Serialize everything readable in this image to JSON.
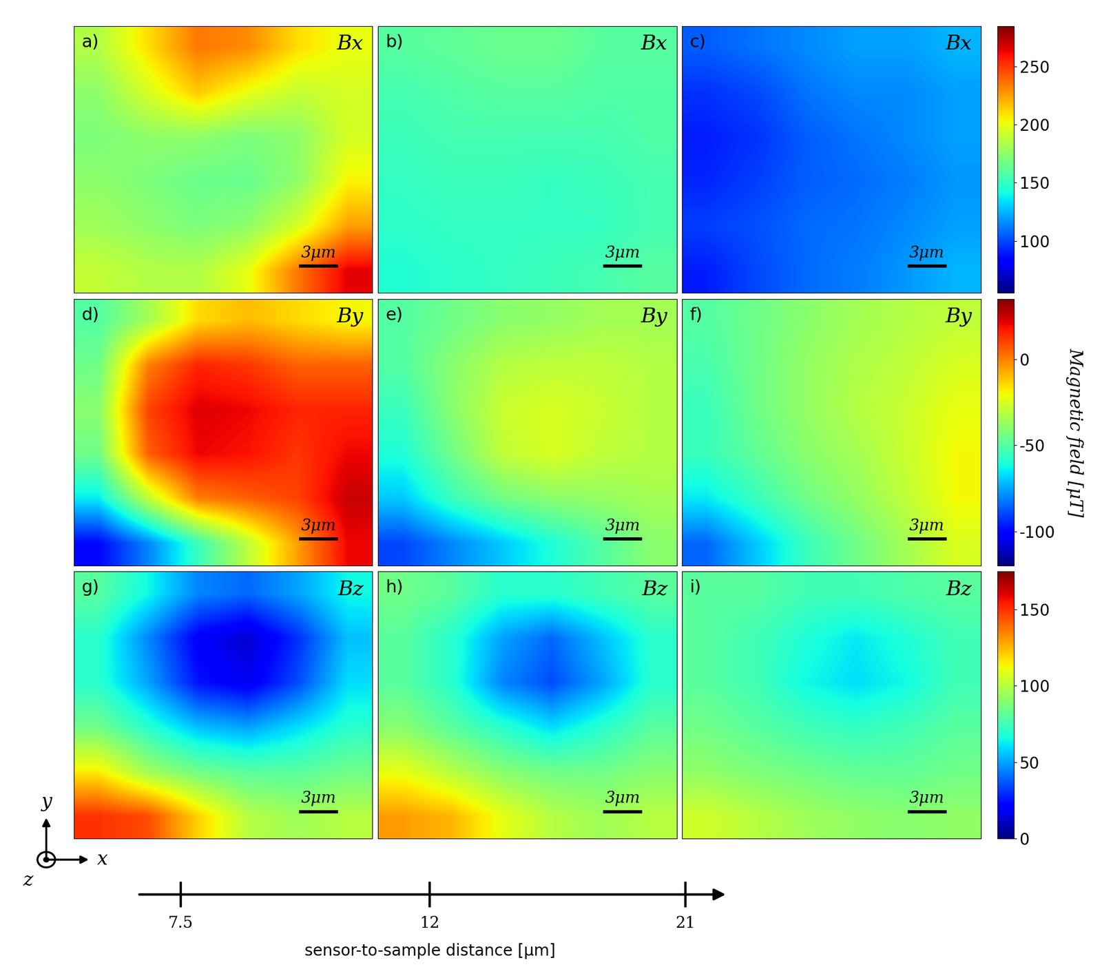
{
  "chart_data": [
    {
      "type": "heatmap",
      "label": "a)",
      "title": "Bx",
      "scale_bar": "3μm",
      "cells": [
        [
          185,
          210,
          235,
          230,
          210,
          200
        ],
        [
          175,
          195,
          215,
          200,
          190,
          195
        ],
        [
          170,
          175,
          175,
          170,
          175,
          195
        ],
        [
          175,
          170,
          165,
          165,
          175,
          205
        ],
        [
          180,
          175,
          170,
          175,
          195,
          225
        ],
        [
          190,
          185,
          185,
          200,
          235,
          265
        ]
      ]
    },
    {
      "type": "heatmap",
      "label": "b)",
      "title": "Bx",
      "scale_bar": "3μm",
      "cells": [
        [
          160,
          162,
          165,
          165,
          160,
          160
        ],
        [
          155,
          158,
          160,
          160,
          158,
          158
        ],
        [
          152,
          155,
          155,
          155,
          155,
          158
        ],
        [
          150,
          152,
          152,
          150,
          152,
          155
        ],
        [
          148,
          150,
          150,
          150,
          150,
          155
        ],
        [
          145,
          148,
          150,
          152,
          155,
          160
        ]
      ]
    },
    {
      "type": "heatmap",
      "label": "c)",
      "title": "Bx",
      "scale_bar": "3μm",
      "cells": [
        [
          105,
          110,
          115,
          120,
          120,
          125
        ],
        [
          95,
          100,
          110,
          115,
          115,
          120
        ],
        [
          90,
          95,
          105,
          110,
          115,
          120
        ],
        [
          92,
          98,
          105,
          108,
          112,
          118
        ],
        [
          98,
          102,
          108,
          110,
          115,
          120
        ],
        [
          90,
          100,
          108,
          112,
          118,
          125
        ]
      ]
    },
    {
      "type": "heatmap",
      "label": "d)",
      "title": "By",
      "scale_bar": "3μm",
      "cells": [
        [
          -50,
          -35,
          -15,
          -10,
          -15,
          -20
        ],
        [
          -45,
          0,
          15,
          12,
          5,
          5
        ],
        [
          -40,
          10,
          22,
          20,
          15,
          15
        ],
        [
          -45,
          5,
          20,
          18,
          12,
          20
        ],
        [
          -65,
          -30,
          0,
          5,
          10,
          25
        ],
        [
          -100,
          -80,
          -55,
          -30,
          -5,
          20
        ]
      ]
    },
    {
      "type": "heatmap",
      "label": "e)",
      "title": "By",
      "scale_bar": "3μm",
      "cells": [
        [
          -50,
          -45,
          -40,
          -38,
          -35,
          -35
        ],
        [
          -50,
          -40,
          -32,
          -30,
          -30,
          -32
        ],
        [
          -55,
          -40,
          -28,
          -25,
          -28,
          -32
        ],
        [
          -60,
          -45,
          -30,
          -25,
          -30,
          -32
        ],
        [
          -70,
          -55,
          -45,
          -40,
          -38,
          -35
        ],
        [
          -90,
          -80,
          -70,
          -60,
          -50,
          -40
        ]
      ]
    },
    {
      "type": "heatmap",
      "label": "f)",
      "title": "By",
      "scale_bar": "3μm",
      "cells": [
        [
          -50,
          -45,
          -40,
          -35,
          -32,
          -30
        ],
        [
          -52,
          -45,
          -38,
          -33,
          -30,
          -25
        ],
        [
          -55,
          -45,
          -38,
          -32,
          -28,
          -22
        ],
        [
          -55,
          -48,
          -40,
          -35,
          -28,
          -20
        ],
        [
          -65,
          -55,
          -45,
          -38,
          -30,
          -20
        ],
        [
          -85,
          -70,
          -55,
          -45,
          -35,
          -25
        ]
      ]
    },
    {
      "type": "heatmap",
      "label": "g)",
      "title": "Bz",
      "scale_bar": "3μm",
      "cells": [
        [
          80,
          65,
          45,
          40,
          50,
          65
        ],
        [
          70,
          45,
          20,
          12,
          30,
          55
        ],
        [
          70,
          50,
          25,
          18,
          35,
          60
        ],
        [
          85,
          70,
          55,
          50,
          60,
          70
        ],
        [
          115,
          95,
          85,
          80,
          80,
          85
        ],
        [
          150,
          145,
          120,
          100,
          95,
          100
        ]
      ]
    },
    {
      "type": "heatmap",
      "label": "h)",
      "title": "Bz",
      "scale_bar": "3μm",
      "cells": [
        [
          85,
          80,
          70,
          70,
          75,
          80
        ],
        [
          80,
          70,
          50,
          40,
          55,
          70
        ],
        [
          80,
          70,
          45,
          35,
          50,
          70
        ],
        [
          90,
          80,
          70,
          60,
          70,
          80
        ],
        [
          110,
          100,
          90,
          85,
          85,
          90
        ],
        [
          130,
          125,
          110,
          100,
          95,
          100
        ]
      ]
    },
    {
      "type": "heatmap",
      "label": "i)",
      "title": "Bz",
      "scale_bar": "3μm",
      "cells": [
        [
          80,
          80,
          75,
          75,
          78,
          80
        ],
        [
          80,
          75,
          68,
          62,
          68,
          75
        ],
        [
          80,
          75,
          65,
          60,
          65,
          75
        ],
        [
          85,
          80,
          75,
          72,
          75,
          80
        ],
        [
          92,
          88,
          85,
          82,
          82,
          85
        ],
        [
          105,
          100,
          95,
          92,
          90,
          92
        ]
      ]
    }
  ],
  "colorbars": [
    {
      "range": [
        55,
        285
      ],
      "ticks": [
        100,
        150,
        200,
        250
      ]
    },
    {
      "range": [
        -120,
        35
      ],
      "ticks": [
        -100,
        -50,
        0
      ]
    },
    {
      "range": [
        0,
        175
      ],
      "ticks": [
        0,
        50,
        100,
        150
      ]
    }
  ],
  "colorbar_label": "Magnetic field [μT]",
  "distance_axis": {
    "label": "sensor-to-sample distance [μm]",
    "ticks": [
      7.5,
      12,
      21
    ]
  },
  "axes_triad": [
    "x",
    "y",
    "z"
  ]
}
